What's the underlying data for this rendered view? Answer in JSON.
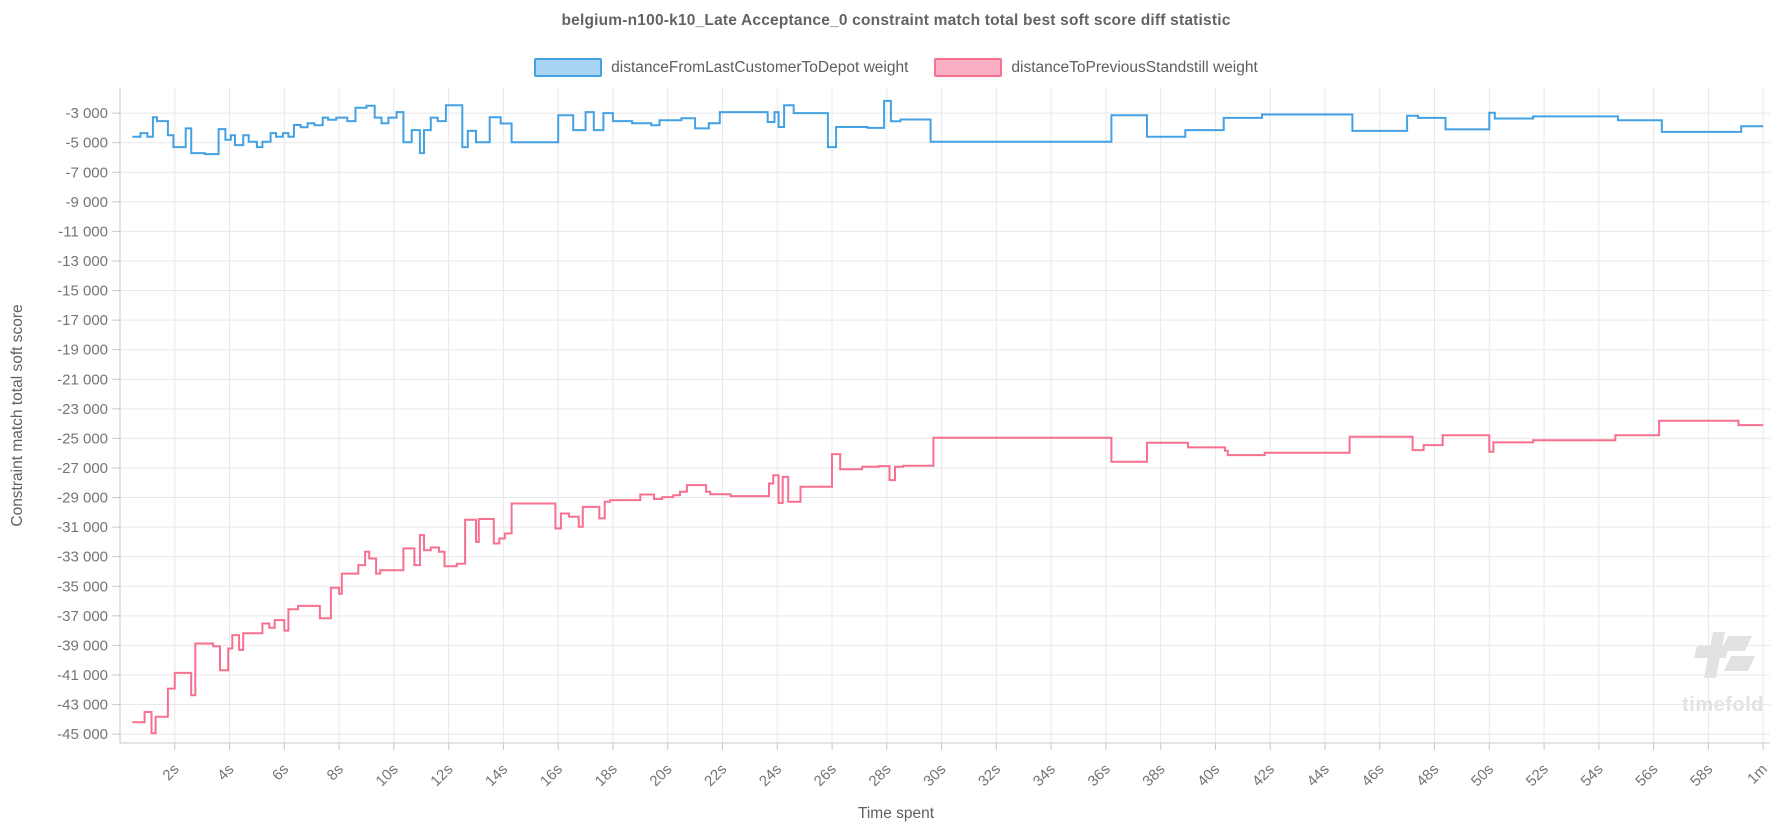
{
  "title": "belgium-n100-k10_Late Acceptance_0 constraint match total best soft score diff statistic",
  "axes": {
    "x_label": "Time spent",
    "y_label": "Constraint match total soft score"
  },
  "legend": [
    {
      "label": "distanceFromLastCustomerToDepot weight",
      "fill": "#a9d5f5",
      "stroke": "#44a1e4"
    },
    {
      "label": "distanceToPreviousStandstill weight",
      "fill": "#fbafc2",
      "stroke": "#f8708f"
    }
  ],
  "watermark": {
    "text": "timefold"
  },
  "colors": {
    "grid": "#e8e8e8",
    "axis": "#c9c9c9",
    "tick_text": "#757575",
    "blue_line": "#44a1e4",
    "pink_line": "#f8708f",
    "watermark": "#e2e2e2"
  },
  "chart_data": {
    "type": "line",
    "step": true,
    "title": "belgium-n100-k10_Late Acceptance_0 constraint match total best soft score diff statistic",
    "xlabel": "Time spent",
    "ylabel": "Constraint match total soft score",
    "xlim": [
      0,
      60.25
    ],
    "ylim": [
      -45600,
      -1300
    ],
    "grid": true,
    "legend_position": "top-center",
    "x_ticks": [
      {
        "t": 2,
        "label": "2s"
      },
      {
        "t": 4,
        "label": "4s"
      },
      {
        "t": 6,
        "label": "6s"
      },
      {
        "t": 8,
        "label": "8s"
      },
      {
        "t": 10,
        "label": "10s"
      },
      {
        "t": 12,
        "label": "12s"
      },
      {
        "t": 14,
        "label": "14s"
      },
      {
        "t": 16,
        "label": "16s"
      },
      {
        "t": 18,
        "label": "18s"
      },
      {
        "t": 20,
        "label": "20s"
      },
      {
        "t": 22,
        "label": "22s"
      },
      {
        "t": 24,
        "label": "24s"
      },
      {
        "t": 26,
        "label": "26s"
      },
      {
        "t": 28,
        "label": "28s"
      },
      {
        "t": 30,
        "label": "30s"
      },
      {
        "t": 32,
        "label": "32s"
      },
      {
        "t": 34,
        "label": "34s"
      },
      {
        "t": 36,
        "label": "36s"
      },
      {
        "t": 38,
        "label": "38s"
      },
      {
        "t": 40,
        "label": "40s"
      },
      {
        "t": 42,
        "label": "42s"
      },
      {
        "t": 44,
        "label": "44s"
      },
      {
        "t": 46,
        "label": "46s"
      },
      {
        "t": 48,
        "label": "48s"
      },
      {
        "t": 50,
        "label": "50s"
      },
      {
        "t": 52,
        "label": "52s"
      },
      {
        "t": 54,
        "label": "54s"
      },
      {
        "t": 56,
        "label": "56s"
      },
      {
        "t": 58,
        "label": "58s"
      },
      {
        "t": 60,
        "label": "1m"
      }
    ],
    "y_ticks": [
      {
        "v": -3000,
        "label": "-3 000"
      },
      {
        "v": -5000,
        "label": "-5 000"
      },
      {
        "v": -7000,
        "label": "-7 000"
      },
      {
        "v": -9000,
        "label": "-9 000"
      },
      {
        "v": -11000,
        "label": "-11 000"
      },
      {
        "v": -13000,
        "label": "-13 000"
      },
      {
        "v": -15000,
        "label": "-15 000"
      },
      {
        "v": -17000,
        "label": "-17 000"
      },
      {
        "v": -19000,
        "label": "-19 000"
      },
      {
        "v": -21000,
        "label": "-21 000"
      },
      {
        "v": -23000,
        "label": "-23 000"
      },
      {
        "v": -25000,
        "label": "-25 000"
      },
      {
        "v": -27000,
        "label": "-27 000"
      },
      {
        "v": -29000,
        "label": "-29 000"
      },
      {
        "v": -31000,
        "label": "-31 000"
      },
      {
        "v": -33000,
        "label": "-33 000"
      },
      {
        "v": -35000,
        "label": "-35 000"
      },
      {
        "v": -37000,
        "label": "-37 000"
      },
      {
        "v": -39000,
        "label": "-39 000"
      },
      {
        "v": -41000,
        "label": "-41 000"
      },
      {
        "v": -43000,
        "label": "-43 000"
      },
      {
        "v": -45000,
        "label": "-45 000"
      }
    ],
    "series": [
      {
        "name": "distanceFromLastCustomerToDepot weight",
        "color": "#44a1e4",
        "points": [
          [
            0.45,
            -4600
          ],
          [
            0.75,
            -4350
          ],
          [
            1.0,
            -4600
          ],
          [
            1.2,
            -3280
          ],
          [
            1.35,
            -3540
          ],
          [
            1.75,
            -4490
          ],
          [
            1.95,
            -5300
          ],
          [
            2.4,
            -4030
          ],
          [
            2.6,
            -5700
          ],
          [
            3.1,
            -5770
          ],
          [
            3.6,
            -4080
          ],
          [
            3.85,
            -4800
          ],
          [
            4.05,
            -4490
          ],
          [
            4.2,
            -5160
          ],
          [
            4.5,
            -4490
          ],
          [
            4.7,
            -4940
          ],
          [
            5.0,
            -5300
          ],
          [
            5.2,
            -4940
          ],
          [
            5.5,
            -4350
          ],
          [
            5.7,
            -4600
          ],
          [
            5.95,
            -4350
          ],
          [
            6.15,
            -4600
          ],
          [
            6.35,
            -3800
          ],
          [
            6.6,
            -3950
          ],
          [
            6.85,
            -3690
          ],
          [
            7.1,
            -3820
          ],
          [
            7.4,
            -3300
          ],
          [
            7.6,
            -3450
          ],
          [
            7.9,
            -3300
          ],
          [
            8.3,
            -3540
          ],
          [
            8.6,
            -2640
          ],
          [
            9.0,
            -2500
          ],
          [
            9.3,
            -3300
          ],
          [
            9.55,
            -3690
          ],
          [
            9.8,
            -3300
          ],
          [
            10.1,
            -2930
          ],
          [
            10.35,
            -4970
          ],
          [
            10.65,
            -4150
          ],
          [
            10.95,
            -5700
          ],
          [
            11.1,
            -4150
          ],
          [
            11.35,
            -3300
          ],
          [
            11.6,
            -3540
          ],
          [
            11.9,
            -2460
          ],
          [
            12.5,
            -5300
          ],
          [
            12.7,
            -4200
          ],
          [
            13.0,
            -4970
          ],
          [
            13.5,
            -3280
          ],
          [
            13.9,
            -3700
          ],
          [
            14.3,
            -4970
          ],
          [
            16.0,
            -3140
          ],
          [
            16.55,
            -4150
          ],
          [
            17.0,
            -2930
          ],
          [
            17.3,
            -4150
          ],
          [
            17.65,
            -3000
          ],
          [
            18.0,
            -3540
          ],
          [
            18.7,
            -3690
          ],
          [
            19.4,
            -3820
          ],
          [
            19.7,
            -3480
          ],
          [
            20.5,
            -3350
          ],
          [
            21.0,
            -4030
          ],
          [
            21.5,
            -3690
          ],
          [
            21.9,
            -2930
          ],
          [
            23.65,
            -3600
          ],
          [
            23.9,
            -2930
          ],
          [
            24.05,
            -3940
          ],
          [
            24.25,
            -2460
          ],
          [
            24.6,
            -3000
          ],
          [
            25.85,
            -5300
          ],
          [
            26.15,
            -3940
          ],
          [
            27.3,
            -4000
          ],
          [
            27.9,
            -2170
          ],
          [
            28.15,
            -3550
          ],
          [
            28.5,
            -3430
          ],
          [
            29.6,
            -4940
          ],
          [
            36.2,
            -3140
          ],
          [
            37.5,
            -4600
          ],
          [
            38.9,
            -4150
          ],
          [
            40.3,
            -3320
          ],
          [
            41.7,
            -3090
          ],
          [
            45.0,
            -4200
          ],
          [
            47.0,
            -3180
          ],
          [
            47.4,
            -3320
          ],
          [
            48.4,
            -4100
          ],
          [
            50.0,
            -2980
          ],
          [
            50.2,
            -3360
          ],
          [
            51.6,
            -3220
          ],
          [
            54.7,
            -3480
          ],
          [
            56.3,
            -4270
          ],
          [
            59.2,
            -3890
          ],
          [
            60,
            -3890
          ]
        ]
      },
      {
        "name": "distanceToPreviousStandstill weight",
        "color": "#f8708f",
        "points": [
          [
            0.45,
            -44200
          ],
          [
            0.9,
            -43500
          ],
          [
            1.15,
            -44940
          ],
          [
            1.3,
            -43830
          ],
          [
            1.75,
            -41920
          ],
          [
            2.0,
            -40860
          ],
          [
            2.6,
            -42370
          ],
          [
            2.75,
            -38870
          ],
          [
            3.4,
            -39050
          ],
          [
            3.65,
            -40680
          ],
          [
            3.95,
            -39210
          ],
          [
            4.1,
            -38300
          ],
          [
            4.35,
            -39300
          ],
          [
            4.5,
            -38180
          ],
          [
            5.2,
            -37520
          ],
          [
            5.45,
            -37800
          ],
          [
            5.65,
            -37290
          ],
          [
            6.0,
            -38000
          ],
          [
            6.15,
            -36560
          ],
          [
            6.5,
            -36330
          ],
          [
            7.3,
            -37160
          ],
          [
            7.7,
            -35100
          ],
          [
            8.0,
            -35500
          ],
          [
            8.1,
            -34140
          ],
          [
            8.7,
            -33570
          ],
          [
            8.95,
            -32670
          ],
          [
            9.1,
            -33120
          ],
          [
            9.35,
            -34140
          ],
          [
            9.5,
            -33910
          ],
          [
            10.35,
            -32440
          ],
          [
            10.75,
            -33570
          ],
          [
            10.95,
            -31540
          ],
          [
            11.1,
            -32560
          ],
          [
            11.35,
            -32380
          ],
          [
            11.65,
            -32670
          ],
          [
            11.85,
            -33640
          ],
          [
            12.3,
            -33480
          ],
          [
            12.6,
            -30500
          ],
          [
            13.0,
            -32000
          ],
          [
            13.1,
            -30450
          ],
          [
            13.65,
            -32110
          ],
          [
            13.85,
            -31770
          ],
          [
            14.05,
            -31430
          ],
          [
            14.3,
            -29400
          ],
          [
            15.9,
            -31090
          ],
          [
            16.1,
            -30080
          ],
          [
            16.4,
            -30300
          ],
          [
            16.75,
            -30970
          ],
          [
            16.9,
            -29630
          ],
          [
            17.5,
            -30410
          ],
          [
            17.7,
            -29280
          ],
          [
            17.9,
            -29170
          ],
          [
            19.0,
            -28790
          ],
          [
            19.5,
            -29100
          ],
          [
            19.8,
            -28970
          ],
          [
            20.2,
            -28850
          ],
          [
            20.45,
            -28610
          ],
          [
            20.7,
            -28160
          ],
          [
            21.4,
            -28610
          ],
          [
            21.55,
            -28770
          ],
          [
            22.3,
            -28900
          ],
          [
            23.7,
            -28050
          ],
          [
            23.85,
            -27490
          ],
          [
            24.05,
            -29360
          ],
          [
            24.2,
            -27600
          ],
          [
            24.4,
            -29290
          ],
          [
            24.85,
            -28270
          ],
          [
            26.0,
            -26060
          ],
          [
            26.3,
            -27080
          ],
          [
            27.1,
            -26920
          ],
          [
            27.7,
            -26870
          ],
          [
            28.1,
            -27820
          ],
          [
            28.3,
            -26920
          ],
          [
            28.6,
            -26850
          ],
          [
            29.7,
            -24960
          ],
          [
            36.2,
            -26580
          ],
          [
            37.5,
            -25290
          ],
          [
            39.0,
            -25610
          ],
          [
            40.35,
            -25840
          ],
          [
            40.45,
            -26130
          ],
          [
            41.8,
            -25970
          ],
          [
            44.9,
            -24890
          ],
          [
            47.2,
            -25790
          ],
          [
            47.6,
            -25450
          ],
          [
            48.3,
            -24780
          ],
          [
            50.0,
            -25900
          ],
          [
            50.15,
            -25270
          ],
          [
            51.6,
            -25120
          ],
          [
            54.6,
            -24780
          ],
          [
            56.2,
            -23810
          ],
          [
            59.1,
            -24100
          ],
          [
            60,
            -24100
          ]
        ]
      }
    ]
  }
}
